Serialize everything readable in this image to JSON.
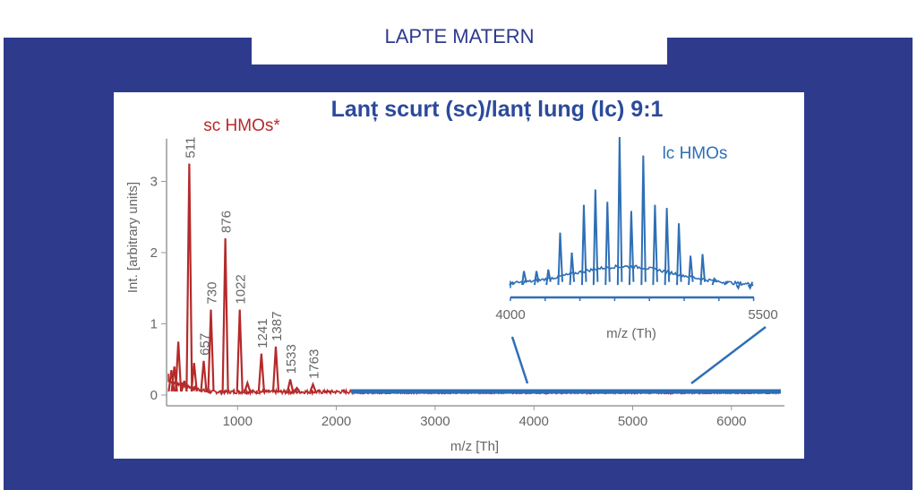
{
  "slide": {
    "title": "LAPTE MATERN"
  },
  "chart_data": {
    "type": "line",
    "title": "Lanț scurt (sc)/lanț lung (lc) 9:1",
    "xlabel": "m/z [Th]",
    "ylabel": "Int. [arbitrary units]",
    "xlim": [
      300,
      6500
    ],
    "ylim": [
      0,
      3.6
    ],
    "xticks": [
      "1000",
      "2000",
      "3000",
      "4000",
      "5000",
      "6000"
    ],
    "yticks": [
      "0",
      "1",
      "2",
      "3"
    ],
    "colors": {
      "sc": "#b52a2a",
      "lc": "#2e6fb6",
      "title": "#2b4a9a"
    },
    "series": [
      {
        "name": "sc HMOs*",
        "peaks": [
          {
            "mz": 330,
            "int": 0.35
          },
          {
            "mz": 360,
            "int": 0.4
          },
          {
            "mz": 400,
            "int": 0.75
          },
          {
            "mz": 460,
            "int": 0.2
          },
          {
            "mz": 511,
            "int": 3.25,
            "label": "511"
          },
          {
            "mz": 560,
            "int": 0.45
          },
          {
            "mz": 657,
            "int": 0.48,
            "label": "657"
          },
          {
            "mz": 730,
            "int": 1.2,
            "label": "730"
          },
          {
            "mz": 876,
            "int": 2.2,
            "label": "876"
          },
          {
            "mz": 1022,
            "int": 1.2,
            "label": "1022"
          },
          {
            "mz": 1100,
            "int": 0.17
          },
          {
            "mz": 1241,
            "int": 0.58,
            "label": "1241"
          },
          {
            "mz": 1387,
            "int": 0.68,
            "label": "1387"
          },
          {
            "mz": 1533,
            "int": 0.22,
            "label": "1533"
          },
          {
            "mz": 1600,
            "int": 0.1
          },
          {
            "mz": 1763,
            "int": 0.15,
            "label": "1763"
          },
          {
            "mz": 1900,
            "int": 0.05
          }
        ]
      },
      {
        "name": "lc HMOs",
        "range": [
          2150,
          6500
        ],
        "inset": {
          "xlim": [
            4000,
            5500
          ],
          "xticks": [
            "4000",
            "5500"
          ],
          "xlabel": "m/z (Th)",
          "peaks_relative": [
            {
              "mz": 4005,
              "int": 0.05
            },
            {
              "mz": 4083,
              "int": 0.13
            },
            {
              "mz": 4160,
              "int": 0.13
            },
            {
              "mz": 4233,
              "int": 0.14
            },
            {
              "mz": 4306,
              "int": 0.38
            },
            {
              "mz": 4378,
              "int": 0.25
            },
            {
              "mz": 4452,
              "int": 0.56
            },
            {
              "mz": 4523,
              "int": 0.66
            },
            {
              "mz": 4597,
              "int": 0.58
            },
            {
              "mz": 4672,
              "int": 1.0
            },
            {
              "mz": 4744,
              "int": 0.52
            },
            {
              "mz": 4818,
              "int": 0.88
            },
            {
              "mz": 4890,
              "int": 0.56
            },
            {
              "mz": 4963,
              "int": 0.54
            },
            {
              "mz": 5037,
              "int": 0.44
            },
            {
              "mz": 5109,
              "int": 0.23
            },
            {
              "mz": 5183,
              "int": 0.24
            },
            {
              "mz": 5255,
              "int": 0.08
            },
            {
              "mz": 5329,
              "int": 0.06
            },
            {
              "mz": 5403,
              "int": 0.02
            },
            {
              "mz": 5476,
              "int": 0.02
            }
          ]
        }
      }
    ]
  }
}
